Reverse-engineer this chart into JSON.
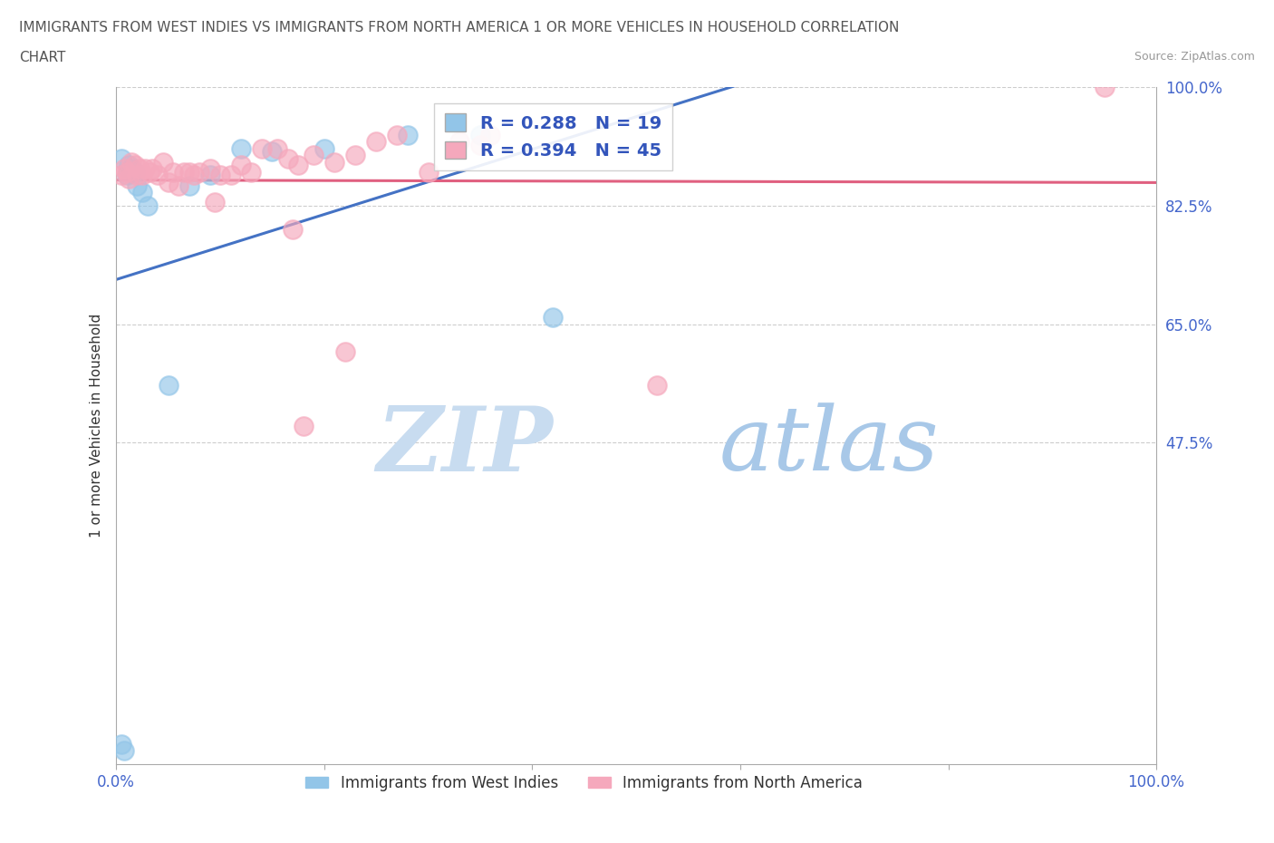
{
  "title_line1": "IMMIGRANTS FROM WEST INDIES VS IMMIGRANTS FROM NORTH AMERICA 1 OR MORE VEHICLES IN HOUSEHOLD CORRELATION",
  "title_line2": "CHART",
  "source": "Source: ZipAtlas.com",
  "ylabel": "1 or more Vehicles in Household",
  "xlim": [
    0,
    1.0
  ],
  "ylim": [
    0,
    1.0
  ],
  "xticks": [
    0.0,
    0.2,
    0.4,
    0.6,
    0.8,
    1.0
  ],
  "xticklabels": [
    "0.0%",
    "",
    "",
    "",
    "",
    "100.0%"
  ],
  "yticks": [
    0.475,
    0.65,
    0.825,
    1.0
  ],
  "yticklabels": [
    "47.5%",
    "65.0%",
    "82.5%",
    "100.0%"
  ],
  "r_blue": 0.288,
  "n_blue": 19,
  "r_pink": 0.394,
  "n_pink": 45,
  "blue_color": "#92C5E8",
  "pink_color": "#F5A8BC",
  "blue_line_color": "#4472C4",
  "pink_line_color": "#E06080",
  "watermark_zip": "ZIP",
  "watermark_atlas": "atlas",
  "blue_x": [
    0.005,
    0.008,
    0.01,
    0.012,
    0.015,
    0.018,
    0.02,
    0.025,
    0.03,
    0.05,
    0.07,
    0.09,
    0.12,
    0.15,
    0.2,
    0.28,
    0.35,
    0.42,
    0.005
  ],
  "blue_y": [
    0.03,
    0.02,
    0.87,
    0.885,
    0.88,
    0.875,
    0.855,
    0.845,
    0.825,
    0.56,
    0.855,
    0.87,
    0.91,
    0.905,
    0.91,
    0.93,
    0.93,
    0.66,
    0.895
  ],
  "pink_x": [
    0.005,
    0.008,
    0.01,
    0.012,
    0.015,
    0.018,
    0.02,
    0.022,
    0.025,
    0.028,
    0.032,
    0.035,
    0.04,
    0.045,
    0.05,
    0.055,
    0.06,
    0.065,
    0.07,
    0.075,
    0.08,
    0.09,
    0.1,
    0.11,
    0.12,
    0.13,
    0.14,
    0.155,
    0.165,
    0.175,
    0.19,
    0.21,
    0.23,
    0.25,
    0.27,
    0.3,
    0.33,
    0.36,
    0.095,
    0.17,
    0.22,
    0.35,
    0.52,
    0.95,
    0.18
  ],
  "pink_y": [
    0.87,
    0.88,
    0.875,
    0.865,
    0.89,
    0.885,
    0.87,
    0.88,
    0.87,
    0.88,
    0.875,
    0.88,
    0.87,
    0.89,
    0.86,
    0.875,
    0.855,
    0.875,
    0.875,
    0.87,
    0.875,
    0.88,
    0.87,
    0.87,
    0.885,
    0.875,
    0.91,
    0.91,
    0.895,
    0.885,
    0.9,
    0.89,
    0.9,
    0.92,
    0.93,
    0.875,
    0.92,
    0.93,
    0.83,
    0.79,
    0.61,
    0.915,
    0.56,
    1.0,
    0.5
  ]
}
